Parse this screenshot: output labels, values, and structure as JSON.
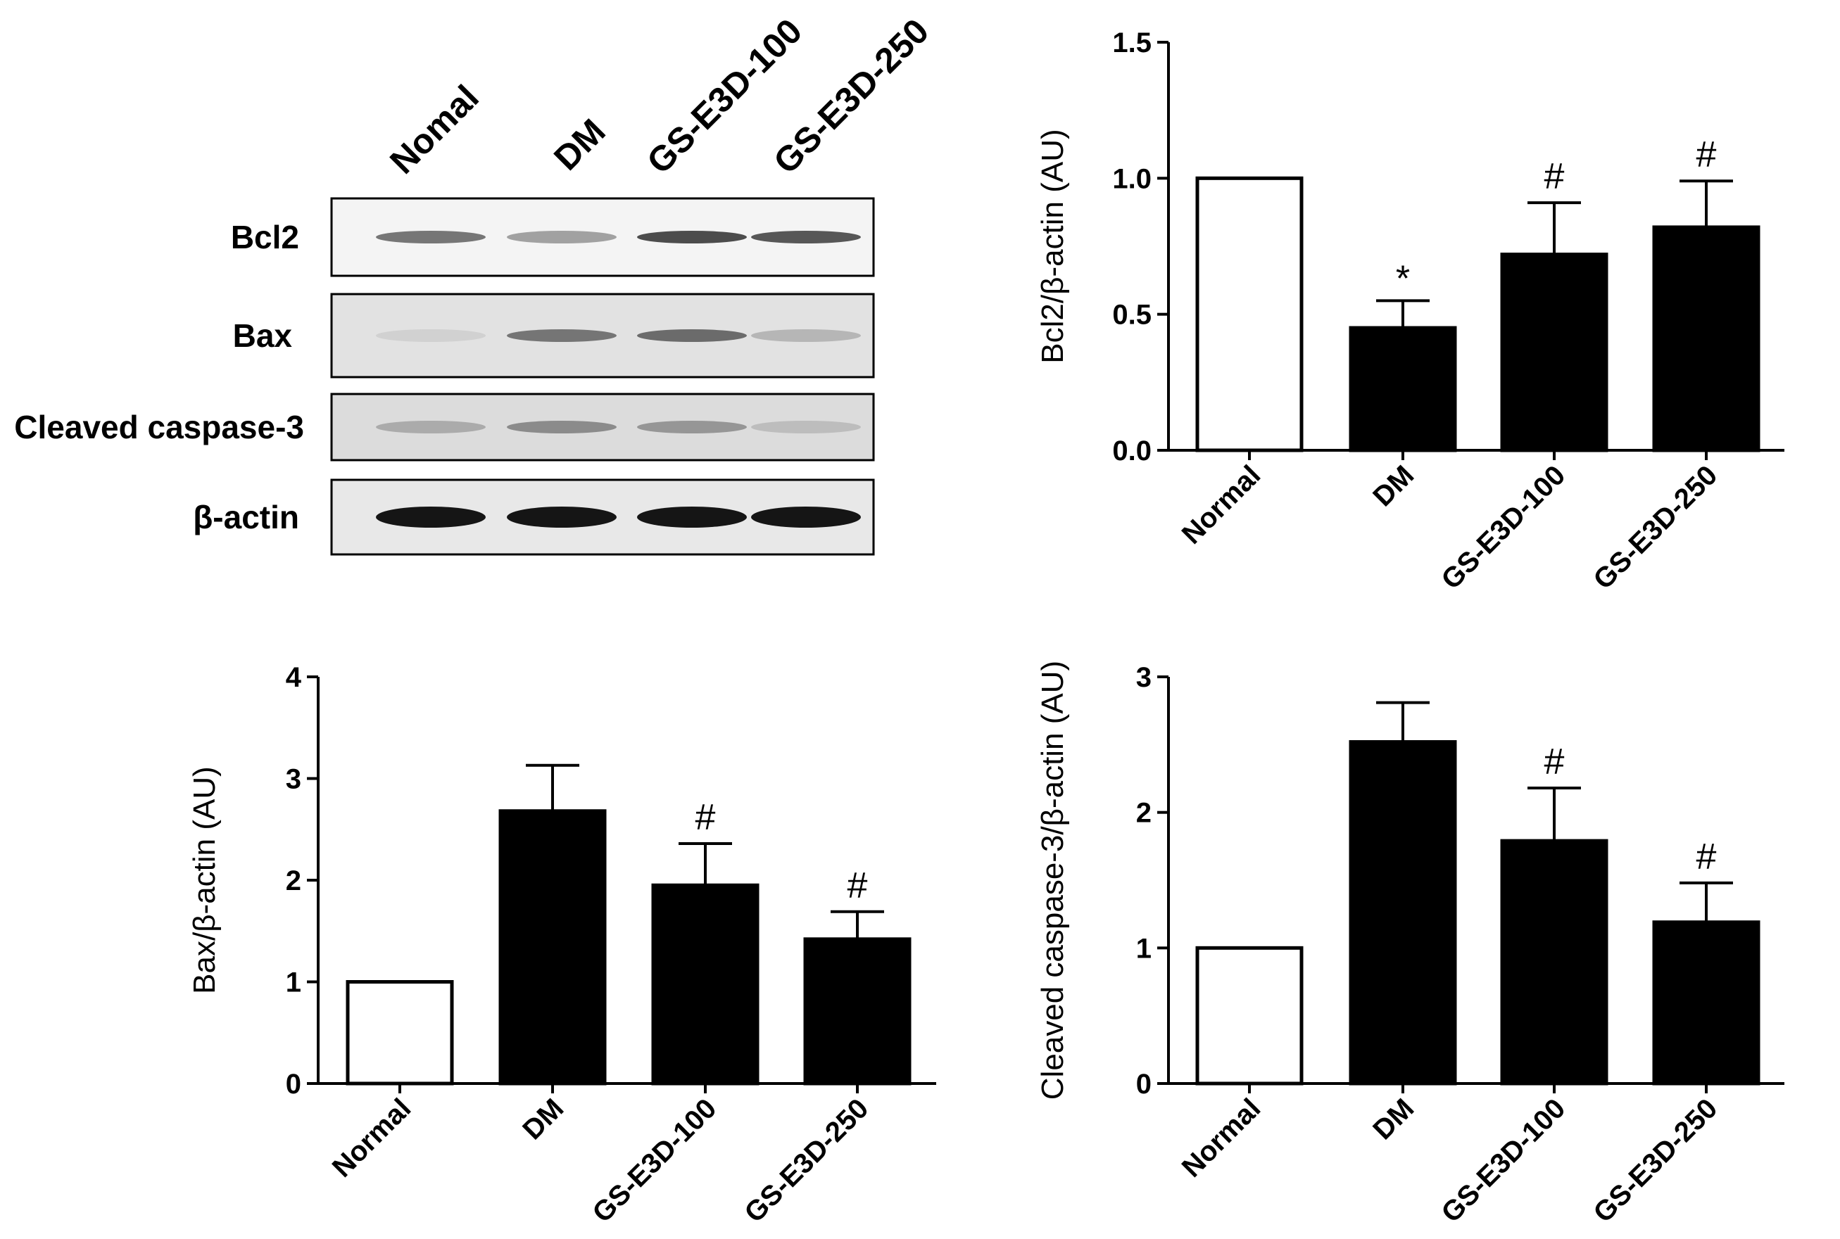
{
  "blot": {
    "lanes": [
      "Nomal",
      "DM",
      "GS-E3D-100",
      "GS-E3D-250"
    ],
    "rows": [
      {
        "label": "Bcl2",
        "intensity": [
          0.55,
          0.35,
          0.75,
          0.7
        ],
        "background": "#f4f4f4"
      },
      {
        "label": "Bax",
        "intensity": [
          0.12,
          0.55,
          0.6,
          0.25
        ],
        "background": "#e2e2e2"
      },
      {
        "label": "Cleaved caspase-3",
        "intensity": [
          0.3,
          0.45,
          0.4,
          0.22
        ],
        "background": "#dcdcdc"
      },
      {
        "label": "β-actin",
        "intensity": [
          1.0,
          1.0,
          1.0,
          1.0
        ],
        "background": "#e8e8e8"
      }
    ]
  },
  "chart_data": [
    {
      "id": "bcl2",
      "type": "bar",
      "categories": [
        "Normal",
        "DM",
        "GS-E3D-100",
        "GS-E3D-250"
      ],
      "values": [
        1.0,
        0.45,
        0.72,
        0.82
      ],
      "errors": [
        0,
        0.1,
        0.19,
        0.17
      ],
      "bar_fill": [
        "#ffffff",
        "#000000",
        "#000000",
        "#000000"
      ],
      "significance": [
        "",
        "*",
        "#",
        "#"
      ],
      "ylabel": "Bcl2/β-actin (AU)",
      "ylim": [
        0,
        1.5
      ],
      "yticks": [
        0.0,
        0.5,
        1.0,
        1.5
      ],
      "ytick_labels": [
        "0.0",
        "0.5",
        "1.0",
        "1.5"
      ]
    },
    {
      "id": "bax",
      "type": "bar",
      "categories": [
        "Normal",
        "DM",
        "GS-E3D-100",
        "GS-E3D-250"
      ],
      "values": [
        1.0,
        2.68,
        1.95,
        1.42
      ],
      "errors": [
        0,
        0.45,
        0.41,
        0.27
      ],
      "bar_fill": [
        "#ffffff",
        "#000000",
        "#000000",
        "#000000"
      ],
      "significance": [
        "",
        "",
        "#",
        "#"
      ],
      "ylabel": "Bax/β-actin (AU)",
      "ylim": [
        0,
        4
      ],
      "yticks": [
        0,
        1,
        2,
        3,
        4
      ],
      "ytick_labels": [
        "0",
        "1",
        "2",
        "3",
        "4"
      ]
    },
    {
      "id": "caspase",
      "type": "bar",
      "categories": [
        "Normal",
        "DM",
        "GS-E3D-100",
        "GS-E3D-250"
      ],
      "values": [
        1.0,
        2.52,
        1.79,
        1.19
      ],
      "errors": [
        0,
        0.29,
        0.39,
        0.29
      ],
      "bar_fill": [
        "#ffffff",
        "#000000",
        "#000000",
        "#000000"
      ],
      "significance": [
        "",
        "",
        "#",
        "#"
      ],
      "ylabel": "Cleaved caspase-3/β-actin (AU)",
      "ylim": [
        0,
        3
      ],
      "yticks": [
        0,
        1,
        2,
        3
      ],
      "ytick_labels": [
        "0",
        "1",
        "2",
        "3"
      ]
    }
  ]
}
